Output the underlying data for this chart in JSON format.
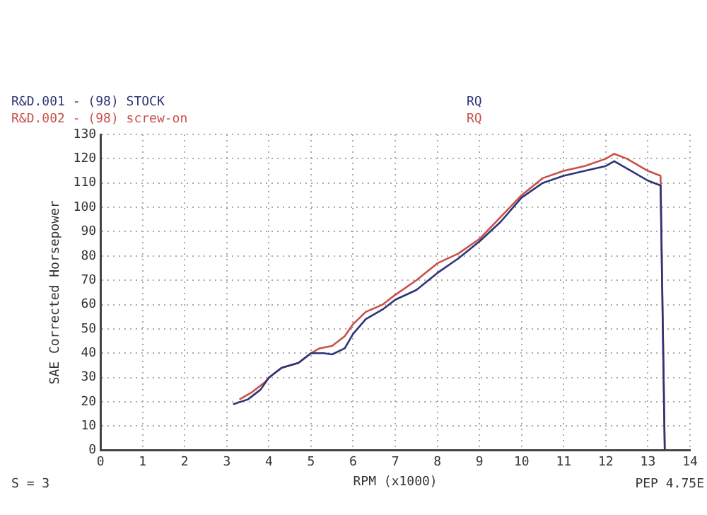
{
  "chart_data": {
    "type": "line",
    "xlabel": "RPM (x1000)",
    "ylabel": "SAE Corrected Horsepower",
    "xlim": [
      0,
      14
    ],
    "xticks": [
      0,
      1,
      2,
      3,
      4,
      5,
      6,
      7,
      8,
      9,
      10,
      11,
      12,
      13,
      14
    ],
    "ylim": [
      0,
      130
    ],
    "yticks": [
      0,
      10,
      20,
      30,
      40,
      50,
      60,
      70,
      80,
      90,
      100,
      110,
      120,
      130
    ],
    "grid": true,
    "legend": "top left",
    "marker": "none",
    "line_style": "solid",
    "annotations": [
      "RQ",
      "S = 3",
      "PEP 4.75E"
    ],
    "series": [
      {
        "name": "R&D.001 - (98) STOCK",
        "color": "#2b3577",
        "x": [
          3.15,
          3.5,
          3.8,
          4.0,
          4.3,
          4.7,
          5.0,
          5.3,
          5.5,
          5.8,
          6.0,
          6.3,
          6.7,
          7.0,
          7.5,
          8.0,
          8.5,
          9.0,
          9.5,
          10.0,
          10.5,
          11.0,
          11.5,
          12.0,
          12.2,
          12.5,
          13.0,
          13.3,
          13.4
        ],
        "values": [
          19,
          21,
          25,
          30,
          34,
          36,
          40,
          40,
          39.5,
          42,
          48,
          54,
          58,
          62,
          66,
          73,
          79,
          86,
          94,
          104,
          110,
          113,
          115,
          117,
          119,
          116,
          111,
          109,
          0
        ]
      },
      {
        "name": "R&D.002 - (98) screw-on",
        "color": "#c8504a",
        "x": [
          3.3,
          3.6,
          3.9,
          4.0,
          4.3,
          4.7,
          5.0,
          5.2,
          5.5,
          5.8,
          6.0,
          6.3,
          6.7,
          7.0,
          7.5,
          8.0,
          8.5,
          9.0,
          9.5,
          10.0,
          10.5,
          11.0,
          11.5,
          12.0,
          12.2,
          12.5,
          13.0,
          13.3,
          13.4
        ],
        "values": [
          21,
          24,
          28,
          30,
          34,
          36,
          40,
          42,
          43,
          47,
          52,
          57,
          60,
          64,
          70,
          77,
          81,
          87,
          96,
          105,
          112,
          115,
          117,
          120,
          122,
          120,
          115,
          113,
          0
        ]
      }
    ]
  }
}
